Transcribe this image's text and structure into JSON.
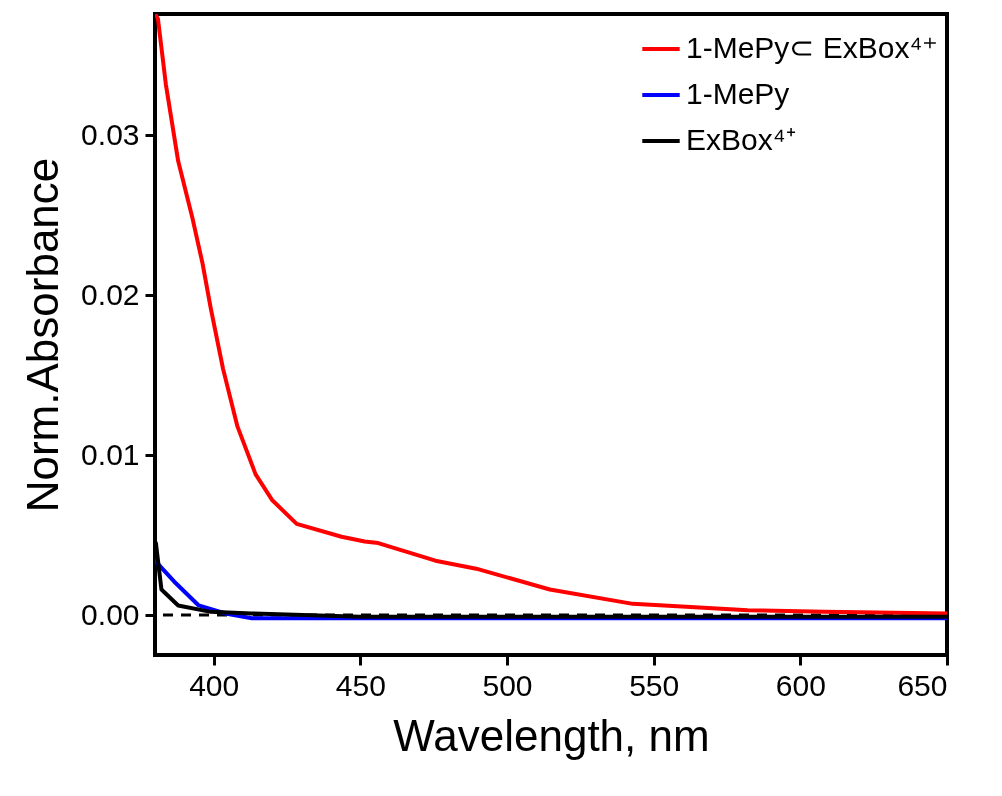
{
  "chart_data": {
    "type": "line",
    "xlabel": "Wavelength, nm",
    "ylabel": "Norm.Absorbance",
    "xlim": [
      380,
      650
    ],
    "xticks": [
      400,
      450,
      500,
      550,
      600,
      650
    ],
    "ylim": [
      -0.0025,
      0.0376
    ],
    "yticks": [
      {
        "value": 0,
        "label": "0.00"
      },
      {
        "value": 0.01,
        "label": "0.01"
      },
      {
        "value": 0.02,
        "label": "0.02"
      },
      {
        "value": 0.03,
        "label": "0.03"
      }
    ],
    "legend": "top right",
    "grid": false,
    "line_style": "solid",
    "marker": "none",
    "ref_lines": [
      {
        "axis": "y",
        "value": 0,
        "color": "#000000",
        "line_style": "dashed"
      }
    ],
    "series": [
      {
        "name": "1-MePy⊂ ExBox⁴⁺",
        "color": "#ff0000",
        "x": [
          380,
          381,
          383.7,
          387.9,
          392.8,
          396.2,
          399,
          403.2,
          408.1,
          414.3,
          419.9,
          428.3,
          443.6,
          451.5,
          456.1,
          475.6,
          489.5,
          514.6,
          542.9,
          562.6,
          582.1,
          608.3,
          650
        ],
        "values": [
          0.0376,
          0.0373,
          0.0332,
          0.0284,
          0.0248,
          0.022,
          0.0192,
          0.0154,
          0.0118,
          0.0088,
          0.0072,
          0.0057,
          0.0049,
          0.0046,
          0.0045,
          0.0034,
          0.0029,
          0.0016,
          0.0007,
          0.0005,
          0.0003,
          0.0002,
          0.0001
        ]
      },
      {
        "name": "1-MePy",
        "color": "#0000ff",
        "x": [
          380,
          386.5,
          394.9,
          404,
          413,
          450,
          500,
          550,
          600,
          650
        ],
        "values": [
          0.0034,
          0.0021,
          0.0006,
          0.0001,
          -0.0002,
          -0.0002,
          -0.0002,
          -0.0002,
          -0.0002,
          -0.0002
        ]
      },
      {
        "name": "ExBox⁴⁺",
        "color": "#000000",
        "x": [
          380.3,
          382.2,
          387.9,
          399,
          413,
          450,
          500,
          550,
          600,
          650
        ],
        "values": [
          0.0045,
          0.0016,
          0.0006,
          0.0002,
          0.0001,
          -0.0001,
          -0.0001,
          -0.0001,
          -0.0001,
          -0.0001
        ]
      }
    ]
  }
}
